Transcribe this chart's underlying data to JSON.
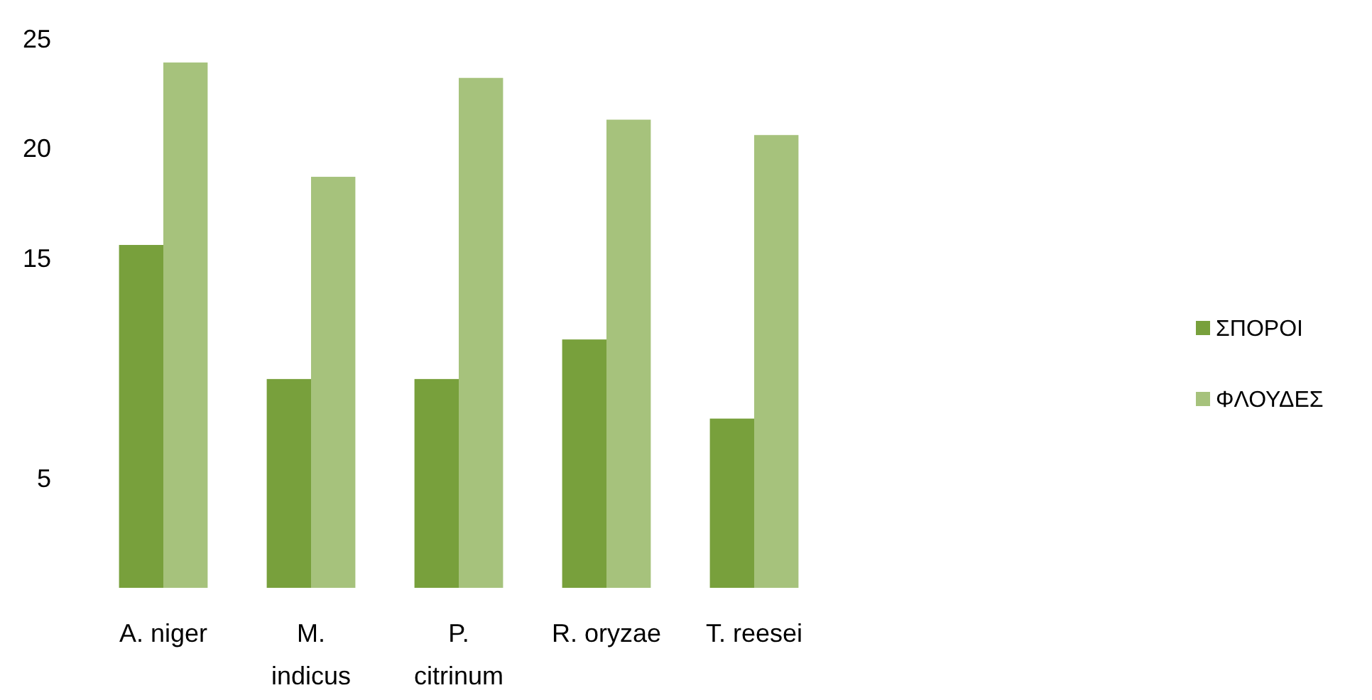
{
  "chart_data": {
    "type": "bar",
    "categories": [
      "A. niger",
      "M. indicus",
      "P. citrinum",
      "R. oryzae",
      "T. reesei"
    ],
    "series": [
      {
        "name": "ΣΠΟΡΟΙ",
        "color": "#78a03c",
        "values": [
          15.6,
          9.5,
          9.5,
          11.3,
          7.7
        ]
      },
      {
        "name": "ΦΛΟΥΔΕΣ",
        "color": "#a6c27c",
        "values": [
          23.9,
          18.7,
          23.2,
          21.3,
          20.6
        ]
      }
    ],
    "ylim": [
      0,
      25
    ],
    "yticks": [
      5,
      15,
      20,
      25
    ],
    "grid": false,
    "legend": "right"
  }
}
